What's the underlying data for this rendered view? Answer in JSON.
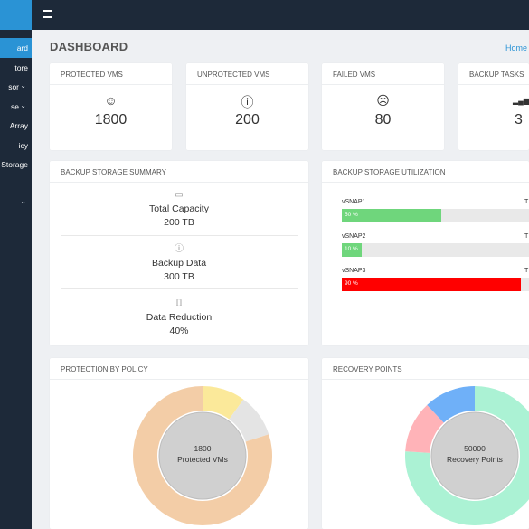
{
  "colors": {
    "sidebar_bg": "#1d2939",
    "accent": "#2a93d5",
    "green": "#6fd67c",
    "red": "#ff0000"
  },
  "sidebar": {
    "items": [
      {
        "label": "ard",
        "active": true,
        "chevron": false
      },
      {
        "label": "tore",
        "active": false,
        "chevron": false
      },
      {
        "label": "sor",
        "active": false,
        "chevron": true
      },
      {
        "label": "se",
        "active": false,
        "chevron": true
      },
      {
        "label": "Array",
        "active": false,
        "chevron": false
      },
      {
        "label": "icy",
        "active": false,
        "chevron": false
      },
      {
        "label": "Storage",
        "active": false,
        "chevron": false
      },
      {
        "label": "",
        "active": false,
        "chevron": true
      }
    ]
  },
  "header": {
    "menu_icon": "hamburger-icon",
    "title": "DASHBOARD",
    "breadcrumb": "Home"
  },
  "stats": [
    {
      "label": "PROTECTED VMS",
      "icon": "smile-icon",
      "glyph": "☺",
      "value": "1800"
    },
    {
      "label": "UNPROTECTED VMS",
      "icon": "info-icon",
      "glyph": "ⓘ",
      "value": "200"
    },
    {
      "label": "FAILED VMS",
      "icon": "sad-icon",
      "glyph": "☹",
      "value": "80"
    },
    {
      "label": "BACKUP TASKS",
      "icon": "bar-chart-icon",
      "glyph": "▂▄▆",
      "value": "3"
    }
  ],
  "summary": {
    "title": "BACKUP STORAGE SUMMARY",
    "items": [
      {
        "icon": "briefcase-icon",
        "glyph": "▭",
        "label": "Total Capacity",
        "value": "200 TB"
      },
      {
        "icon": "info-icon",
        "glyph": "ⓘ",
        "label": "Backup Data",
        "value": "300 TB"
      },
      {
        "icon": "compress-icon",
        "glyph": "⟦⟧",
        "label": "Data Reduction",
        "value": "40%"
      }
    ]
  },
  "utilization": {
    "title": "BACKUP STORAGE UTILIZATION",
    "items": [
      {
        "name": "vSNAP1",
        "max_label": "T",
        "percent": 50,
        "percent_label": "50 %",
        "color": "#6fd67c"
      },
      {
        "name": "vSNAP2",
        "max_label": "T",
        "percent": 10,
        "percent_label": "10 %",
        "color": "#6fd67c"
      },
      {
        "name": "vSNAP3",
        "max_label": "T",
        "percent": 90,
        "percent_label": "90 %",
        "color": "#ff0000"
      }
    ]
  },
  "policy_chart": {
    "title": "PROTECTION BY POLICY",
    "center_value": "1800",
    "center_label": "Protected VMs",
    "segments": [
      {
        "value": 10,
        "color": "#fbe99a"
      },
      {
        "value": 10,
        "color": "#e4e4e4"
      },
      {
        "value": 80,
        "color": "#f3cda7"
      }
    ]
  },
  "recovery_chart": {
    "title": "RECOVERY POINTS",
    "center_value": "50000",
    "center_label": "Recovery Points",
    "segments": [
      {
        "value": 76,
        "color": "#abf2d4"
      },
      {
        "value": 12,
        "color": "#ffb3b8"
      },
      {
        "value": 12,
        "color": "#6fb0f8"
      }
    ]
  }
}
